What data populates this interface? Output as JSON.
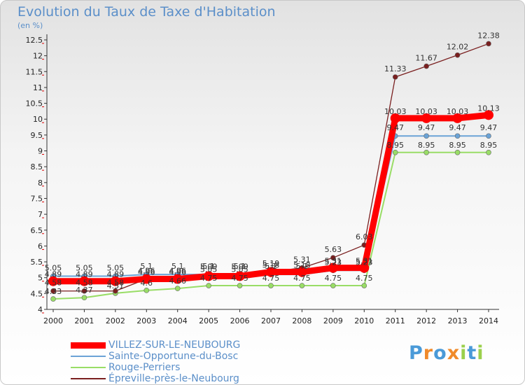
{
  "chart_data": {
    "type": "line",
    "title": "Evolution du Taux de Taxe d'Habitation",
    "subtitle": "(en %)",
    "xlabel": "",
    "ylabel": "",
    "categories": [
      "2000",
      "2001",
      "2002",
      "2003",
      "2004",
      "2005",
      "2006",
      "2007",
      "2008",
      "2009",
      "2010",
      "2011",
      "2012",
      "2013",
      "2014"
    ],
    "ylim": [
      4,
      12.5
    ],
    "yticks": [
      "4",
      "4.5",
      "5",
      "5.5",
      "6",
      "6.5",
      "7",
      "7.5",
      "8",
      "8.5",
      "9",
      "9.5",
      "10",
      "10.5",
      "11",
      "11.5",
      "12",
      "12.5"
    ],
    "series": [
      {
        "name": "VILLEZ-SUR-LE-NEUBOURG",
        "color": "#ff0000",
        "labels": [
          "4.89",
          "4.89",
          "4.89",
          "4.96",
          "4.96",
          "5.05",
          "5.05",
          "5.18",
          "5.18",
          "5.31",
          "5.31",
          "10.03",
          "10.03",
          "10.03",
          "10.13"
        ],
        "values": [
          4.89,
          4.89,
          4.89,
          4.96,
          4.96,
          5.05,
          5.05,
          5.18,
          5.18,
          5.31,
          5.31,
          10.03,
          10.03,
          10.03,
          10.13
        ]
      },
      {
        "name": "Sainte-Opportune-du-Bosc",
        "color": "#6ba3d6",
        "labels": [
          "5.05",
          "5.05",
          "5.05",
          "5.1",
          "5.1",
          "5.1",
          "5.1",
          "5.1",
          "5.1",
          "5.23",
          "5.23",
          "9.47",
          "9.47",
          "9.47",
          "9.47"
        ],
        "values": [
          5.05,
          5.05,
          5.05,
          5.1,
          5.1,
          5.1,
          5.1,
          5.1,
          5.1,
          5.23,
          5.23,
          9.47,
          9.47,
          9.47,
          9.47
        ]
      },
      {
        "name": "Rouge-Perriers",
        "color": "#99dd66",
        "labels": [
          "4.33",
          "4.37",
          "4.51",
          "4.6",
          "4.66",
          "4.75",
          "4.75",
          "4.75",
          "4.75",
          "4.75",
          "4.75",
          "8.95",
          "8.95",
          "8.95",
          "8.95"
        ],
        "values": [
          4.33,
          4.37,
          4.51,
          4.6,
          4.66,
          4.75,
          4.75,
          4.75,
          4.75,
          4.75,
          4.75,
          8.95,
          8.95,
          8.95,
          8.95
        ]
      },
      {
        "name": "Épreville-près-le-Neubourg",
        "color": "#7a1f1f",
        "labels": [
          "4.58",
          "4.58",
          "4.58",
          "4.96",
          "4.96",
          "5.09",
          "5.09",
          "5.19",
          "5.31",
          "5.63",
          "6.03",
          "11.33",
          "11.67",
          "12.02",
          "12.38"
        ],
        "values": [
          4.58,
          4.58,
          4.58,
          4.96,
          4.96,
          5.09,
          5.09,
          5.19,
          5.31,
          5.63,
          6.03,
          11.33,
          11.67,
          12.02,
          12.38
        ]
      }
    ],
    "legend": "bottom-left"
  },
  "brand": {
    "text": "Proxiti",
    "letter_colors": [
      "#4a9ad8",
      "#f08a2a",
      "#4a9ad8",
      "#f08a2a",
      "#9bd04c",
      "#4a9ad8",
      "#9bd04c"
    ]
  }
}
